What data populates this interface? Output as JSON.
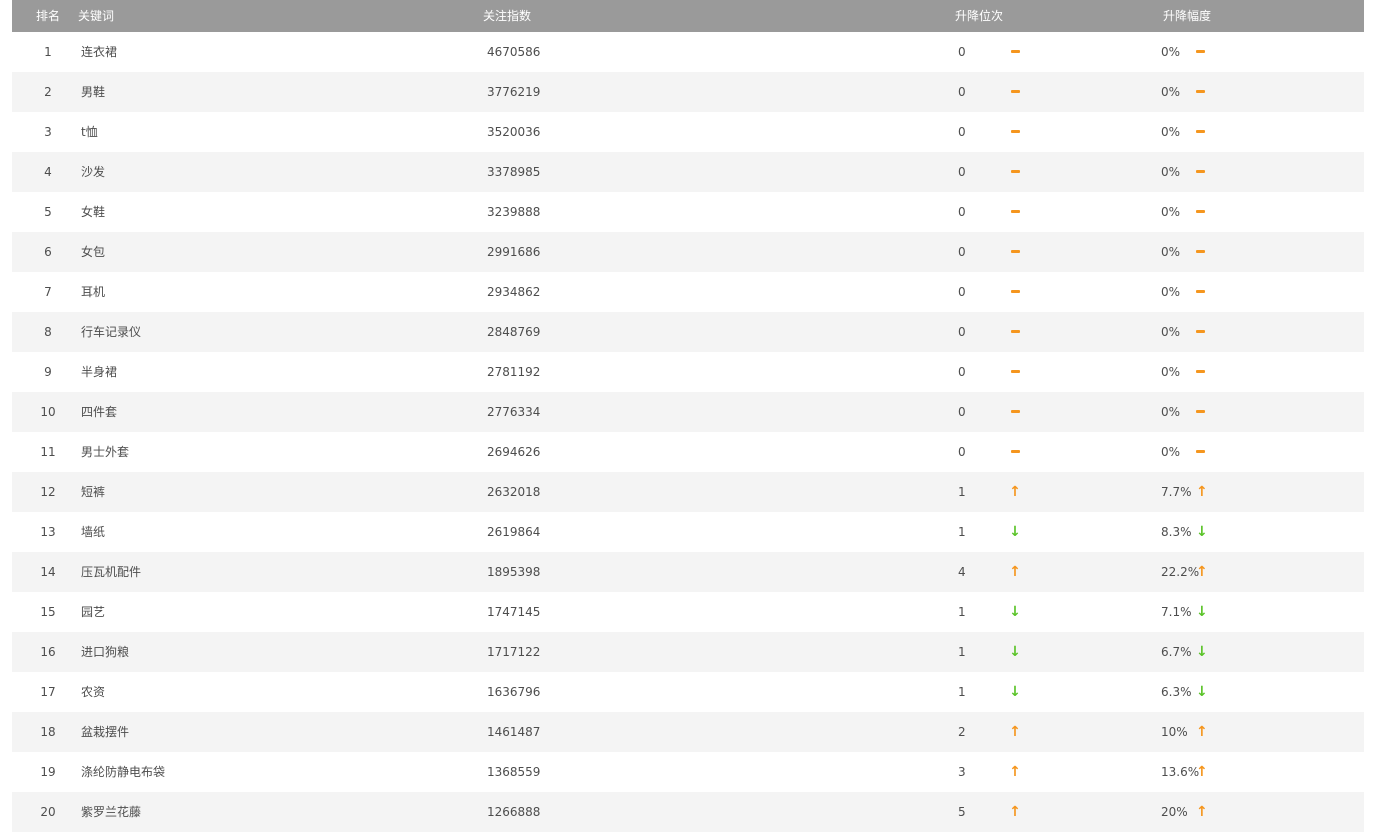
{
  "table": {
    "columns": {
      "rank": "排名",
      "keyword": "关键词",
      "index": "关注指数",
      "rank_change": "升降位次",
      "pct_change": "升降幅度"
    },
    "rows": [
      {
        "rank": "1",
        "keyword": "连衣裙",
        "index": "4670586",
        "change": "0",
        "change_dir": "flat",
        "pct": "0%",
        "pct_dir": "flat"
      },
      {
        "rank": "2",
        "keyword": "男鞋",
        "index": "3776219",
        "change": "0",
        "change_dir": "flat",
        "pct": "0%",
        "pct_dir": "flat"
      },
      {
        "rank": "3",
        "keyword": "t恤",
        "index": "3520036",
        "change": "0",
        "change_dir": "flat",
        "pct": "0%",
        "pct_dir": "flat"
      },
      {
        "rank": "4",
        "keyword": "沙发",
        "index": "3378985",
        "change": "0",
        "change_dir": "flat",
        "pct": "0%",
        "pct_dir": "flat"
      },
      {
        "rank": "5",
        "keyword": "女鞋",
        "index": "3239888",
        "change": "0",
        "change_dir": "flat",
        "pct": "0%",
        "pct_dir": "flat"
      },
      {
        "rank": "6",
        "keyword": "女包",
        "index": "2991686",
        "change": "0",
        "change_dir": "flat",
        "pct": "0%",
        "pct_dir": "flat"
      },
      {
        "rank": "7",
        "keyword": "耳机",
        "index": "2934862",
        "change": "0",
        "change_dir": "flat",
        "pct": "0%",
        "pct_dir": "flat"
      },
      {
        "rank": "8",
        "keyword": "行车记录仪",
        "index": "2848769",
        "change": "0",
        "change_dir": "flat",
        "pct": "0%",
        "pct_dir": "flat"
      },
      {
        "rank": "9",
        "keyword": "半身裙",
        "index": "2781192",
        "change": "0",
        "change_dir": "flat",
        "pct": "0%",
        "pct_dir": "flat"
      },
      {
        "rank": "10",
        "keyword": "四件套",
        "index": "2776334",
        "change": "0",
        "change_dir": "flat",
        "pct": "0%",
        "pct_dir": "flat"
      },
      {
        "rank": "11",
        "keyword": "男士外套",
        "index": "2694626",
        "change": "0",
        "change_dir": "flat",
        "pct": "0%",
        "pct_dir": "flat"
      },
      {
        "rank": "12",
        "keyword": "短裤",
        "index": "2632018",
        "change": "1",
        "change_dir": "up",
        "pct": "7.7%",
        "pct_dir": "up"
      },
      {
        "rank": "13",
        "keyword": "墙纸",
        "index": "2619864",
        "change": "1",
        "change_dir": "down",
        "pct": "8.3%",
        "pct_dir": "down"
      },
      {
        "rank": "14",
        "keyword": "压瓦机配件",
        "index": "1895398",
        "change": "4",
        "change_dir": "up",
        "pct": "22.2%",
        "pct_dir": "up"
      },
      {
        "rank": "15",
        "keyword": "园艺",
        "index": "1747145",
        "change": "1",
        "change_dir": "down",
        "pct": "7.1%",
        "pct_dir": "down"
      },
      {
        "rank": "16",
        "keyword": "进口狗粮",
        "index": "1717122",
        "change": "1",
        "change_dir": "down",
        "pct": "6.7%",
        "pct_dir": "down"
      },
      {
        "rank": "17",
        "keyword": "农资",
        "index": "1636796",
        "change": "1",
        "change_dir": "down",
        "pct": "6.3%",
        "pct_dir": "down"
      },
      {
        "rank": "18",
        "keyword": "盆栽摆件",
        "index": "1461487",
        "change": "2",
        "change_dir": "up",
        "pct": "10%",
        "pct_dir": "up"
      },
      {
        "rank": "19",
        "keyword": "涤纶防静电布袋",
        "index": "1368559",
        "change": "3",
        "change_dir": "up",
        "pct": "13.6%",
        "pct_dir": "up"
      },
      {
        "rank": "20",
        "keyword": "紫罗兰花藤",
        "index": "1266888",
        "change": "5",
        "change_dir": "up",
        "pct": "20%",
        "pct_dir": "up"
      }
    ]
  },
  "icons": {
    "up": "↑",
    "down": "↓",
    "flat": "dash"
  },
  "colors": {
    "up_orange": "#f5961e",
    "down_green": "#5ac328",
    "header_bg": "#9a9a9a",
    "alt_row_bg": "#f4f4f4",
    "text": "#4d4d4d"
  }
}
